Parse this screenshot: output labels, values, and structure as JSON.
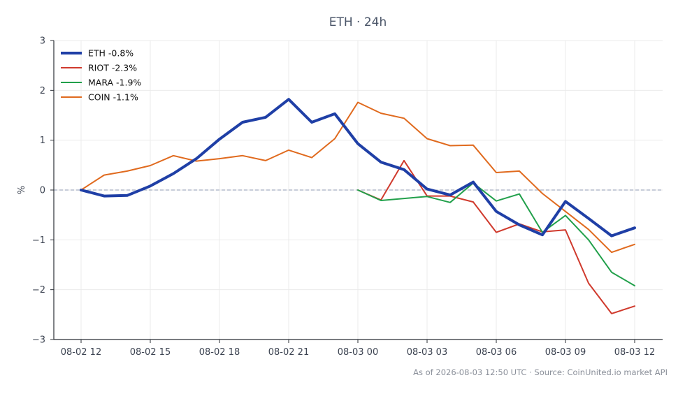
{
  "chart_data": {
    "type": "line",
    "title": "ETH · 24h",
    "xlabel": "",
    "ylabel": "%",
    "ylim": [
      -3,
      3
    ],
    "yticks": [
      -3,
      -2,
      -1,
      0,
      1,
      2,
      3
    ],
    "ytick_labels": [
      "−3",
      "−2",
      "−1",
      "0",
      "1",
      "2",
      "3"
    ],
    "xticks": [
      0,
      3,
      6,
      9,
      12,
      15,
      18,
      21,
      24
    ],
    "xtick_labels": [
      "08-02 12",
      "08-02 15",
      "08-02 18",
      "08-02 21",
      "08-03 00",
      "08-03 03",
      "08-03 06",
      "08-03 09",
      "08-03 12"
    ],
    "x_unit": "hours from 08-02 12:00",
    "zero_line": "dashed",
    "grid": true,
    "legend_position": "top-left",
    "series": [
      {
        "name": "ETH -0.8%",
        "color": "#1f3fa6",
        "width": 4,
        "x": [
          0,
          1,
          2,
          3,
          4,
          5,
          6,
          7,
          8,
          9,
          10,
          11,
          12,
          13,
          14,
          15,
          16,
          17,
          18,
          19,
          20,
          21,
          22,
          23,
          24
        ],
        "values": [
          0.0,
          -0.12,
          -0.11,
          0.08,
          0.33,
          0.63,
          1.02,
          1.36,
          1.46,
          1.82,
          1.36,
          1.53,
          0.93,
          0.56,
          0.41,
          0.02,
          -0.1,
          0.16,
          -0.43,
          -0.7,
          -0.9,
          -0.23,
          -0.57,
          -0.92,
          -0.76
        ]
      },
      {
        "name": "RIOT -2.3%",
        "color": "#d03a2d",
        "width": 2,
        "x": [
          12,
          13,
          14,
          15,
          16,
          17,
          18,
          19,
          20,
          21,
          22,
          23,
          24
        ],
        "values": [
          0.0,
          -0.2,
          0.59,
          -0.12,
          -0.12,
          -0.24,
          -0.85,
          -0.68,
          -0.84,
          -0.8,
          -1.87,
          -2.48,
          -2.33
        ]
      },
      {
        "name": "MARA -1.9%",
        "color": "#22a04b",
        "width": 2,
        "x": [
          12,
          13,
          14,
          15,
          16,
          17,
          18,
          19,
          20,
          21,
          22,
          23,
          24
        ],
        "values": [
          0.0,
          -0.21,
          -0.17,
          -0.13,
          -0.25,
          0.14,
          -0.22,
          -0.08,
          -0.85,
          -0.51,
          -1.0,
          -1.65,
          -1.92
        ]
      },
      {
        "name": "COIN -1.1%",
        "color": "#e06a1e",
        "width": 2,
        "x": [
          0,
          1,
          2,
          3,
          4,
          5,
          6,
          7,
          8,
          9,
          10,
          11,
          12,
          13,
          14,
          15,
          16,
          17,
          18,
          19,
          20,
          21,
          22,
          23,
          24
        ],
        "values": [
          0.0,
          0.3,
          0.38,
          0.49,
          0.69,
          0.58,
          0.63,
          0.69,
          0.59,
          0.8,
          0.65,
          1.03,
          1.76,
          1.54,
          1.44,
          1.03,
          0.89,
          0.9,
          0.35,
          0.38,
          -0.07,
          -0.43,
          -0.79,
          -1.25,
          -1.09
        ]
      }
    ]
  },
  "footer": "As of 2026-08-03 12:50 UTC · Source: CoinUnited.io market API"
}
